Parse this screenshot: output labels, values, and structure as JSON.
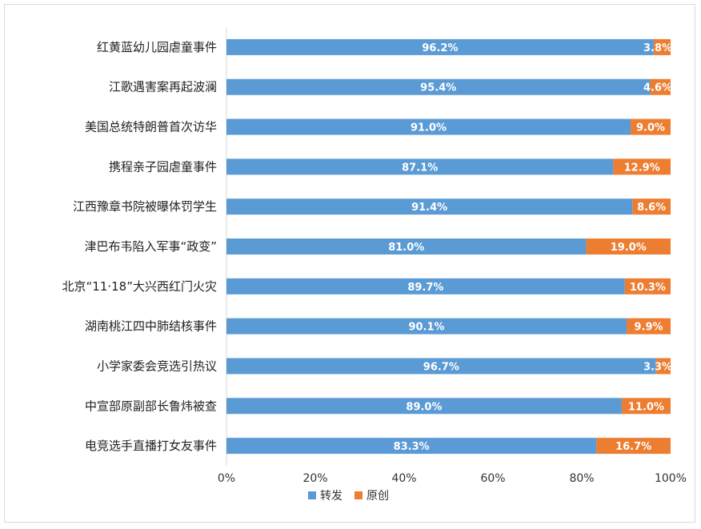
{
  "chart_data": {
    "type": "bar",
    "orientation": "horizontal",
    "stacked": "percent",
    "categories": [
      "红黄蓝幼儿园虐童事件",
      "江歌遇害案再起波澜",
      "美国总统特朗普首次访华",
      "携程亲子园虐童事件",
      "江西豫章书院被曝体罚学生",
      "津巴布韦陷入军事“政变”",
      "北京“11·18”大兴西红门火灾",
      "湖南桃江四中肺结核事件",
      "小学家委会竞选引热议",
      "中宣部原副部长鲁炜被查",
      "电竞选手直播打女友事件"
    ],
    "series": [
      {
        "name": "转发",
        "color": "#5b9bd5",
        "values": [
          96.2,
          95.4,
          91.0,
          87.1,
          91.4,
          81.0,
          89.7,
          90.1,
          96.7,
          89.0,
          83.3
        ],
        "labels": [
          "96.2%",
          "95.4%",
          "91.0%",
          "87.1%",
          "91.4%",
          "81.0%",
          "89.7%",
          "90.1%",
          "96.7%",
          "89.0%",
          "83.3%"
        ]
      },
      {
        "name": "原创",
        "color": "#ed7d31",
        "values": [
          3.8,
          4.6,
          9.0,
          12.9,
          8.6,
          19.0,
          10.3,
          9.9,
          3.3,
          11.0,
          16.7
        ],
        "labels": [
          "3.8%",
          "4.6%",
          "9.0%",
          "12.9%",
          "8.6%",
          "19.0%",
          "10.3%",
          "9.9%",
          "3.3%",
          "11.0%",
          "16.7%"
        ]
      }
    ],
    "xlim": [
      0,
      100
    ],
    "xticks": [
      0,
      20,
      40,
      60,
      80,
      100
    ],
    "xtick_labels": [
      "0%",
      "20%",
      "40%",
      "60%",
      "80%",
      "100%"
    ],
    "grid": false,
    "legend_position": "bottom"
  }
}
